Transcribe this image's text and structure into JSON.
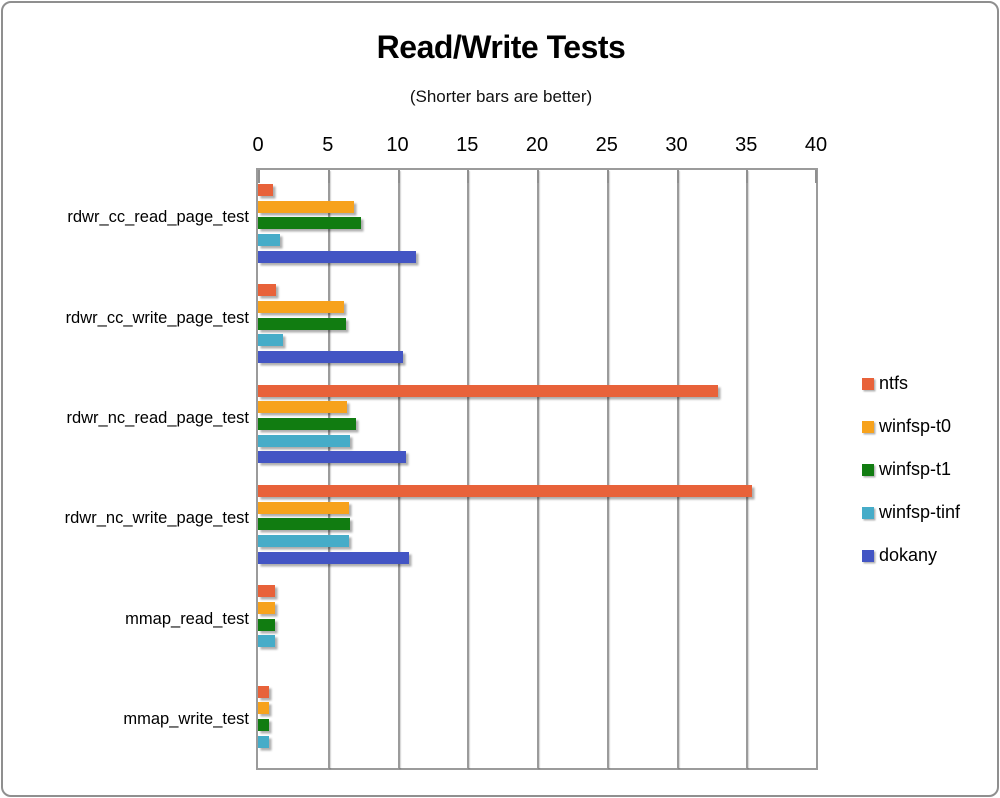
{
  "header": {
    "title": "Read/Write Tests",
    "subtitle": "(Shorter bars are better)"
  },
  "chart_data": {
    "type": "bar",
    "orientation": "horizontal",
    "title": "Read/Write Tests",
    "subtitle": "(Shorter bars are better)",
    "categories": [
      "rdwr_cc_read_page_test",
      "rdwr_cc_write_page_test",
      "rdwr_nc_read_page_test",
      "rdwr_nc_write_page_test",
      "mmap_read_test",
      "mmap_write_test"
    ],
    "series": [
      {
        "name": "ntfs",
        "color": "#E8623A",
        "values": [
          1.1,
          1.3,
          33.0,
          35.4,
          1.2,
          0.8
        ]
      },
      {
        "name": "winfsp-t0",
        "color": "#F7A21C",
        "values": [
          6.9,
          6.2,
          6.4,
          6.5,
          1.2,
          0.8
        ]
      },
      {
        "name": "winfsp-t1",
        "color": "#117C11",
        "values": [
          7.4,
          6.3,
          7.0,
          6.6,
          1.2,
          0.8
        ]
      },
      {
        "name": "winfsp-tinf",
        "color": "#46ACC8",
        "values": [
          1.6,
          1.8,
          6.6,
          6.5,
          1.2,
          0.8
        ]
      },
      {
        "name": "dokany",
        "color": "#4355C4",
        "values": [
          11.3,
          10.4,
          10.6,
          10.8,
          null,
          null
        ]
      }
    ],
    "xlim": [
      0,
      40
    ],
    "x_ticks": [
      0,
      5,
      10,
      15,
      20,
      25,
      30,
      35,
      40
    ],
    "axis_position": "top",
    "grid": true,
    "legend_position": "right",
    "grid_color": "#9B9B9B",
    "text_color": "#000000"
  }
}
